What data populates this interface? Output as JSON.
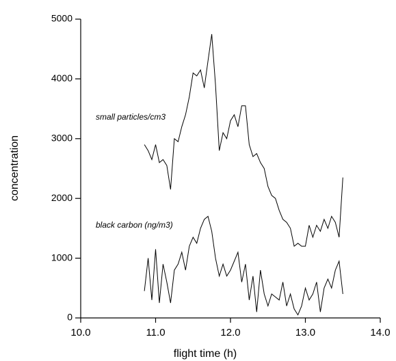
{
  "chart_data": {
    "type": "line",
    "x_label": "flight time (h)",
    "y_label": "concentration",
    "x": [
      10.85,
      10.9,
      10.95,
      11.0,
      11.05,
      11.1,
      11.15,
      11.2,
      11.25,
      11.3,
      11.35,
      11.4,
      11.45,
      11.5,
      11.55,
      11.6,
      11.65,
      11.7,
      11.75,
      11.8,
      11.85,
      11.9,
      11.95,
      12.0,
      12.05,
      12.1,
      12.15,
      12.2,
      12.25,
      12.3,
      12.35,
      12.4,
      12.45,
      12.5,
      12.55,
      12.6,
      12.65,
      12.7,
      12.75,
      12.8,
      12.85,
      12.9,
      12.95,
      13.0,
      13.05,
      13.1,
      13.15,
      13.2,
      13.25,
      13.3,
      13.35,
      13.4,
      13.45,
      13.5
    ],
    "series": [
      {
        "name": "small particles/cm3",
        "color": "#000000",
        "values": [
          2900,
          2800,
          2650,
          2900,
          2600,
          2650,
          2550,
          2150,
          3000,
          2950,
          3200,
          3400,
          3700,
          4100,
          4050,
          4150,
          3850,
          4300,
          4750,
          3900,
          2800,
          3100,
          3000,
          3300,
          3400,
          3200,
          3550,
          3550,
          2900,
          2700,
          2750,
          2600,
          2500,
          2200,
          2050,
          2000,
          1800,
          1650,
          1600,
          1500,
          1200,
          1250,
          1200,
          1200,
          1550,
          1350,
          1550,
          1450,
          1650,
          1500,
          1700,
          1600,
          1350,
          2350
        ]
      },
      {
        "name": "black carbon (ng/m3)",
        "color": "#000000",
        "values": [
          450,
          1000,
          300,
          1150,
          250,
          900,
          600,
          250,
          800,
          900,
          1100,
          800,
          1200,
          1350,
          1250,
          1500,
          1650,
          1700,
          1450,
          1000,
          700,
          900,
          700,
          800,
          950,
          1100,
          600,
          900,
          300,
          700,
          100,
          800,
          400,
          200,
          400,
          350,
          300,
          600,
          200,
          400,
          150,
          50,
          200,
          500,
          300,
          400,
          600,
          100,
          500,
          650,
          500,
          800,
          950,
          400
        ]
      }
    ],
    "xlim": [
      10.0,
      14.0
    ],
    "xticks": [
      {
        "value": 10,
        "label": "10.0"
      },
      {
        "value": 11,
        "label": "11.0"
      },
      {
        "value": 12,
        "label": "12.0"
      },
      {
        "value": 13,
        "label": "13.0"
      },
      {
        "value": 14,
        "label": "14.0"
      }
    ],
    "ylim": [
      0,
      5000
    ],
    "yticks": [
      0,
      1000,
      2000,
      3000,
      4000,
      5000
    ],
    "grid": false
  }
}
